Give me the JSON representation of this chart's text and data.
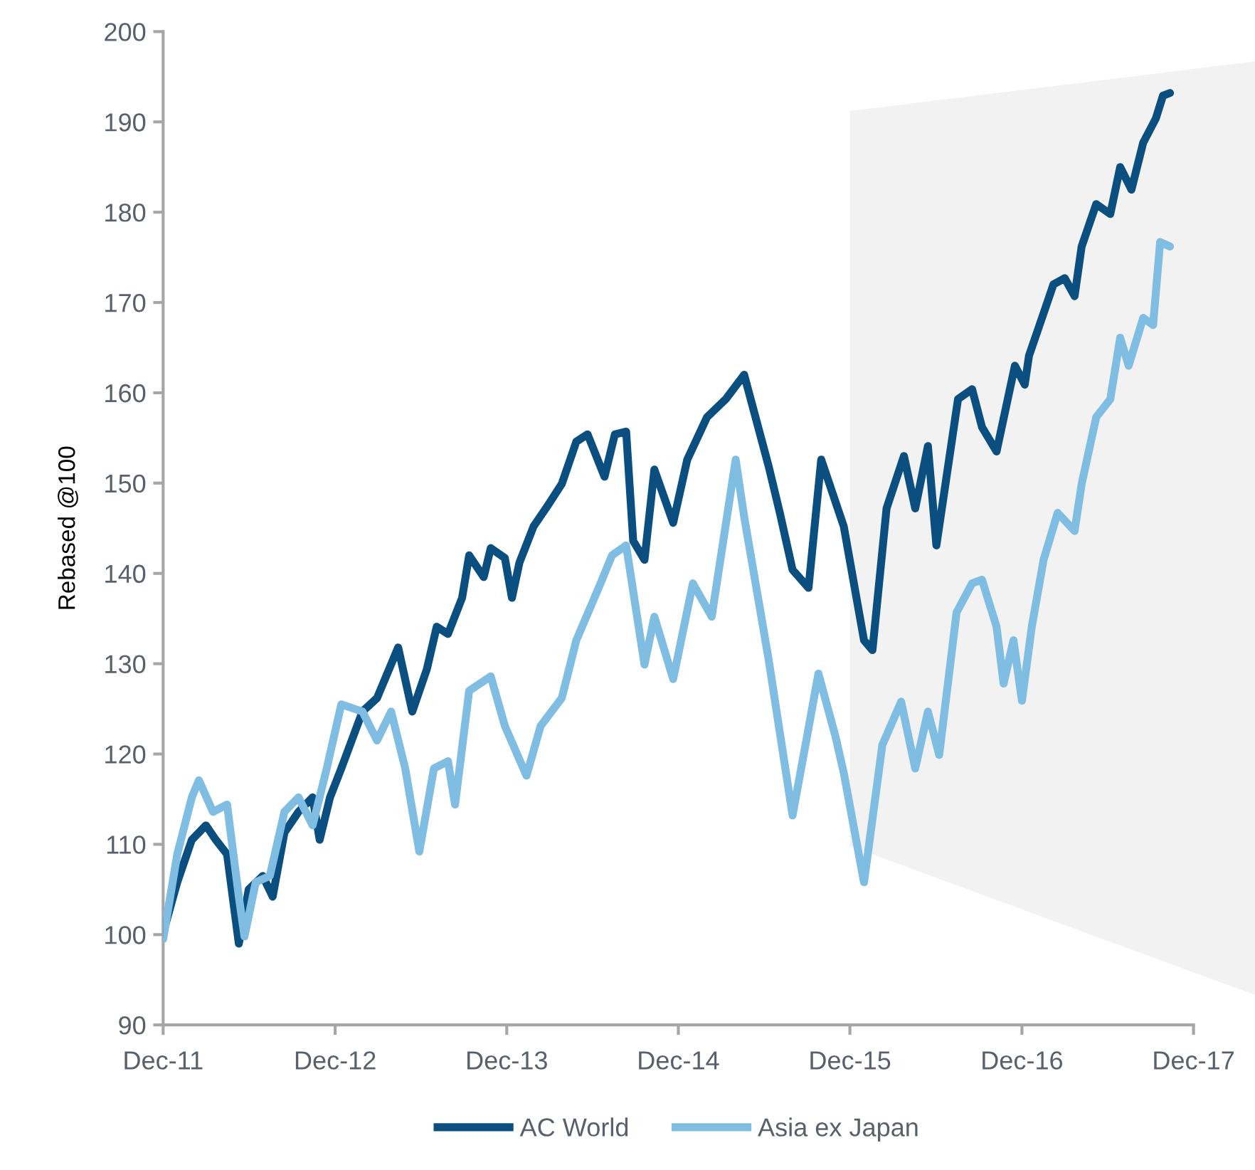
{
  "chart_data": {
    "type": "line",
    "ylabel": "Rebased @100",
    "xlim": [
      "2011-12-31",
      "2017-12-31"
    ],
    "xticks": [
      {
        "value": "2011-12-31",
        "label": "Dec-11"
      },
      {
        "value": "2012-12-31",
        "label": "Dec-12"
      },
      {
        "value": "2013-12-31",
        "label": "Dec-13"
      },
      {
        "value": "2014-12-31",
        "label": "Dec-14"
      },
      {
        "value": "2015-12-31",
        "label": "Dec-15"
      },
      {
        "value": "2016-12-31",
        "label": "Dec-16"
      },
      {
        "value": "2017-12-31",
        "label": "Dec-17"
      }
    ],
    "ylim": [
      90,
      200
    ],
    "yticks": [
      90,
      100,
      110,
      120,
      130,
      140,
      150,
      160,
      170,
      180,
      190,
      200
    ],
    "grid": false,
    "legend": "bottom",
    "marker": "none",
    "line_style": "solid",
    "bands": [
      {
        "axis": "x",
        "from": "2015-12-31",
        "to": "2017-12-31",
        "color": "#f2f2f2"
      }
    ],
    "series": [
      {
        "name": "AC World",
        "color": "#0b4f80",
        "x": [
          "2011-12-31",
          "2012-01-30",
          "2012-03-01",
          "2012-03-31",
          "2012-04-21",
          "2012-05-15",
          "2012-06-09",
          "2012-06-30",
          "2012-07-30",
          "2012-08-20",
          "2012-09-14",
          "2012-10-14",
          "2012-11-13",
          "2012-11-28",
          "2012-12-20",
          "2013-01-13",
          "2013-02-27",
          "2013-03-30",
          "2013-05-14",
          "2013-06-13",
          "2013-07-14",
          "2013-08-04",
          "2013-08-28",
          "2013-09-27",
          "2013-10-12",
          "2013-11-12",
          "2013-11-27",
          "2013-12-27",
          "2014-01-11",
          "2014-01-27",
          "2014-02-26",
          "2014-03-28",
          "2014-04-27",
          "2014-05-28",
          "2014-06-21",
          "2014-07-27",
          "2014-08-18",
          "2014-09-11",
          "2014-09-26",
          "2014-10-20",
          "2014-11-10",
          "2014-12-20",
          "2015-01-19",
          "2015-03-02",
          "2015-04-11",
          "2015-05-20",
          "2015-07-11",
          "2015-08-04",
          "2015-08-31",
          "2015-10-04",
          "2015-10-31",
          "2015-12-18",
          "2016-01-30",
          "2016-02-17",
          "2016-03-18",
          "2016-04-24",
          "2016-05-18",
          "2016-06-14",
          "2016-07-02",
          "2016-08-17",
          "2016-09-16",
          "2016-10-07",
          "2016-11-07",
          "2016-12-16",
          "2017-01-06",
          "2017-01-15",
          "2017-02-15",
          "2017-03-08",
          "2017-04-01",
          "2017-04-22",
          "2017-05-07",
          "2017-06-07",
          "2017-07-07",
          "2017-07-28",
          "2017-08-21",
          "2017-09-15",
          "2017-10-12",
          "2017-10-27",
          "2017-11-11"
        ],
        "values": [
          100.2,
          105.8,
          110.5,
          112.1,
          110.5,
          108.9,
          99.0,
          105.0,
          106.5,
          104.2,
          111.3,
          113.6,
          115.2,
          110.5,
          115.2,
          118.4,
          124.7,
          126.2,
          131.8,
          124.7,
          129.4,
          134.1,
          133.3,
          137.3,
          142.0,
          139.6,
          142.8,
          141.7,
          137.3,
          141.2,
          145.2,
          147.5,
          149.9,
          154.6,
          155.4,
          150.7,
          155.4,
          155.7,
          143.6,
          141.5,
          151.5,
          145.6,
          152.6,
          157.3,
          159.3,
          162.0,
          151.9,
          146.7,
          140.4,
          138.4,
          152.6,
          145.2,
          132.6,
          131.5,
          147.2,
          153.0,
          147.2,
          154.1,
          143.1,
          159.3,
          160.4,
          156.2,
          153.5,
          163.0,
          160.9,
          164.1,
          168.8,
          172.0,
          172.7,
          170.7,
          176.2,
          180.9,
          179.8,
          185.0,
          182.5,
          187.7,
          190.4,
          192.9,
          193.2
        ]
      },
      {
        "name": "Asia ex Japan",
        "color": "#7fbde3",
        "x": [
          "2011-12-31",
          "2012-01-30",
          "2012-03-01",
          "2012-03-16",
          "2012-04-15",
          "2012-05-15",
          "2012-06-09",
          "2012-06-21",
          "2012-07-15",
          "2012-08-14",
          "2012-09-14",
          "2012-10-14",
          "2012-11-13",
          "2012-12-13",
          "2013-01-13",
          "2013-02-27",
          "2013-03-30",
          "2013-04-29",
          "2013-05-29",
          "2013-06-28",
          "2013-07-29",
          "2013-08-28",
          "2013-09-12",
          "2013-10-12",
          "2013-11-27",
          "2013-12-27",
          "2014-02-11",
          "2014-03-13",
          "2014-04-27",
          "2014-05-28",
          "2014-07-12",
          "2014-08-12",
          "2014-09-11",
          "2014-10-20",
          "2014-11-10",
          "2014-12-20",
          "2015-01-31",
          "2015-03-12",
          "2015-05-02",
          "2015-05-20",
          "2015-07-11",
          "2015-08-31",
          "2015-10-01",
          "2015-10-25",
          "2015-11-30",
          "2015-12-18",
          "2016-01-30",
          "2016-03-09",
          "2016-04-18",
          "2016-05-18",
          "2016-06-14",
          "2016-07-08",
          "2016-08-14",
          "2016-09-16",
          "2016-10-07",
          "2016-11-07",
          "2016-11-22",
          "2016-12-13",
          "2016-12-31",
          "2017-01-21",
          "2017-02-15",
          "2017-03-17",
          "2017-04-22",
          "2017-05-07",
          "2017-06-07",
          "2017-07-07",
          "2017-07-28",
          "2017-08-15",
          "2017-09-15",
          "2017-10-06",
          "2017-10-21",
          "2017-11-11"
        ],
        "values": [
          99.5,
          108.9,
          115.2,
          117.1,
          113.6,
          114.4,
          104.2,
          99.8,
          105.8,
          106.5,
          113.6,
          115.2,
          112.1,
          118.4,
          125.5,
          124.7,
          121.5,
          124.7,
          118.4,
          109.2,
          118.4,
          119.2,
          114.4,
          127.0,
          128.6,
          123.1,
          117.6,
          123.1,
          126.2,
          132.6,
          138.1,
          142.0,
          143.1,
          129.9,
          135.2,
          128.3,
          138.9,
          135.2,
          152.6,
          146.3,
          130.5,
          113.2,
          122.0,
          128.9,
          122.0,
          117.9,
          105.8,
          121.0,
          125.8,
          118.4,
          124.7,
          119.9,
          135.7,
          138.9,
          139.3,
          134.1,
          127.8,
          132.6,
          125.9,
          134.1,
          141.5,
          146.7,
          144.7,
          149.9,
          157.3,
          159.3,
          166.1,
          163.0,
          168.3,
          167.5,
          176.7,
          176.2
        ]
      }
    ]
  }
}
